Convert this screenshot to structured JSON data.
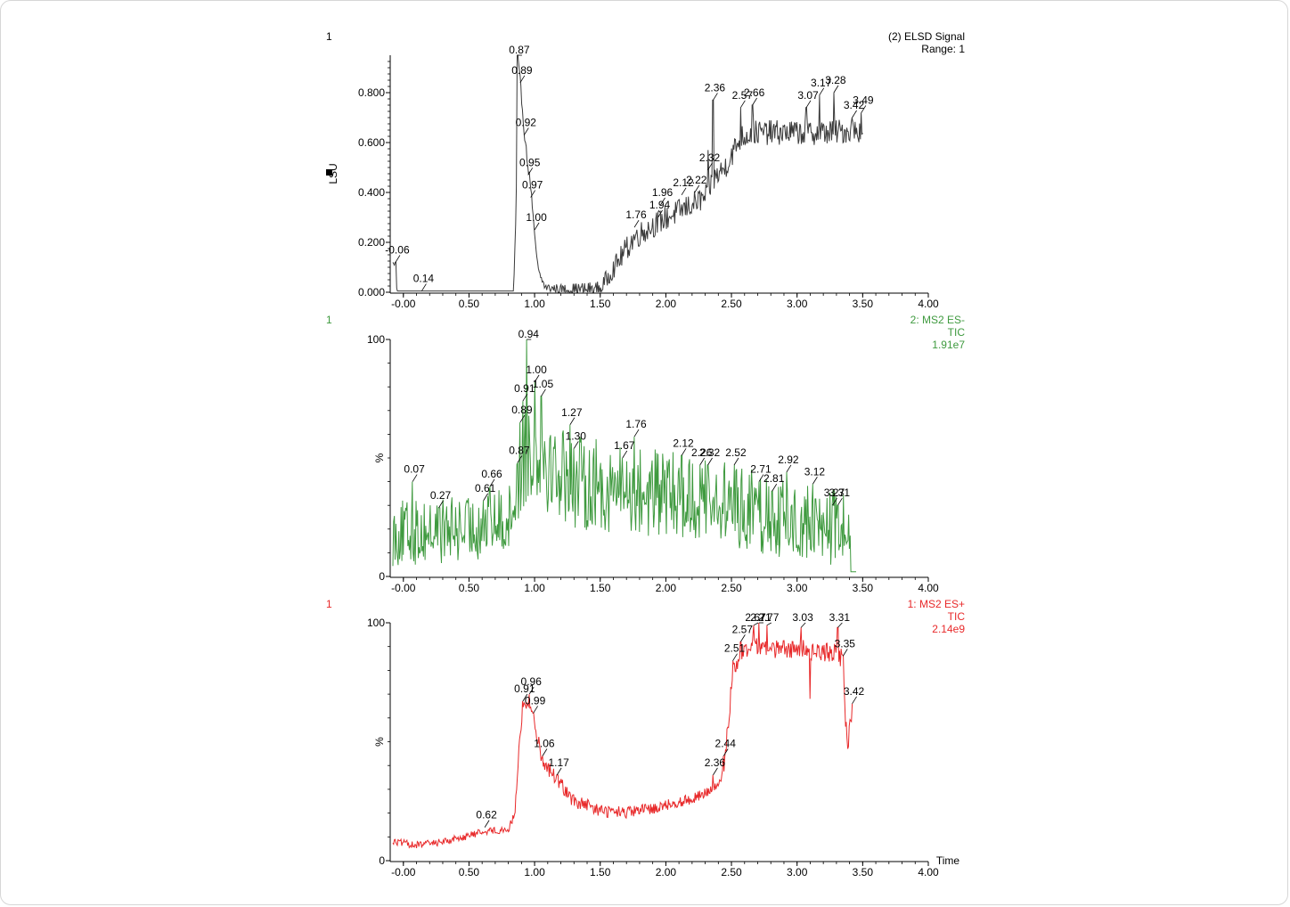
{
  "chart_data": [
    {
      "type": "line",
      "panel_label": "1",
      "title_lines": [
        "(2) ELSD Signal",
        "Range: 1"
      ],
      "ylabel": "LSU",
      "ylim": [
        0,
        0.95
      ],
      "yticks": [
        {
          "value": 0.0,
          "label": "0.000"
        },
        {
          "value": 0.2,
          "label": "0.200"
        },
        {
          "value": 0.4,
          "label": "0.400"
        },
        {
          "value": 0.6,
          "label": "0.600"
        },
        {
          "value": 0.8,
          "label": "0.800"
        }
      ],
      "xlim": [
        -0.08,
        4.0
      ],
      "xticks": [
        {
          "value": 0.0,
          "label": "-0.00"
        },
        {
          "value": 0.5,
          "label": "0.50"
        },
        {
          "value": 1.0,
          "label": "1.00"
        },
        {
          "value": 1.5,
          "label": "1.50"
        },
        {
          "value": 2.0,
          "label": "2.00"
        },
        {
          "value": 2.5,
          "label": "2.50"
        },
        {
          "value": 3.0,
          "label": "3.00"
        },
        {
          "value": 3.5,
          "label": "3.50"
        },
        {
          "value": 4.0,
          "label": "4.00"
        }
      ],
      "color": "#3a3a3a",
      "x_end": 3.5,
      "shape": [
        [
          -0.08,
          0.12
        ],
        [
          -0.06,
          0.1
        ],
        [
          -0.05,
          0.005
        ],
        [
          0.14,
          0.005
        ],
        [
          0.84,
          0.005
        ],
        [
          0.86,
          0.35
        ],
        [
          0.87,
          0.95
        ],
        [
          0.89,
          0.85
        ],
        [
          0.92,
          0.65
        ],
        [
          0.95,
          0.5
        ],
        [
          0.97,
          0.43
        ],
        [
          1.0,
          0.22
        ],
        [
          1.03,
          0.08
        ],
        [
          1.08,
          0.02
        ],
        [
          1.2,
          0.01
        ],
        [
          1.5,
          0.01
        ],
        [
          1.58,
          0.08
        ],
        [
          1.76,
          0.22
        ],
        [
          1.94,
          0.28
        ],
        [
          2.12,
          0.33
        ],
        [
          2.3,
          0.38
        ],
        [
          2.36,
          0.45
        ],
        [
          2.45,
          0.5
        ],
        [
          2.57,
          0.62
        ],
        [
          2.66,
          0.64
        ],
        [
          3.0,
          0.64
        ],
        [
          3.2,
          0.64
        ],
        [
          3.5,
          0.65
        ]
      ],
      "noise": [
        [
          -0.08,
          0.0
        ],
        [
          0.84,
          0.0
        ],
        [
          0.9,
          0.02
        ],
        [
          1.02,
          0.015
        ],
        [
          1.6,
          0.04
        ],
        [
          1.7,
          0.05
        ],
        [
          3.5,
          0.05
        ]
      ],
      "spikes": [
        [
          -0.06,
          0.12
        ],
        [
          0.87,
          0.95
        ],
        [
          2.36,
          0.77
        ],
        [
          2.32,
          0.57
        ],
        [
          2.57,
          0.74
        ],
        [
          2.66,
          0.75
        ],
        [
          3.07,
          0.74
        ],
        [
          3.17,
          0.79
        ],
        [
          3.28,
          0.8
        ],
        [
          3.42,
          0.7
        ],
        [
          3.49,
          0.72
        ]
      ],
      "peaks": [
        {
          "x": -0.06,
          "y": 0.12,
          "label": "-0.06"
        },
        {
          "x": 0.14,
          "y": 0.005,
          "label": "0.14"
        },
        {
          "x": 0.87,
          "y": 0.95,
          "label": "0.87"
        },
        {
          "x": 0.89,
          "y": 0.84,
          "label": "0.89"
        },
        {
          "x": 0.92,
          "y": 0.63,
          "label": "0.92"
        },
        {
          "x": 0.95,
          "y": 0.47,
          "label": "0.95"
        },
        {
          "x": 0.97,
          "y": 0.38,
          "label": "0.97"
        },
        {
          "x": 1.0,
          "y": 0.25,
          "label": "1.00"
        },
        {
          "x": 1.76,
          "y": 0.26,
          "label": "1.76"
        },
        {
          "x": 1.94,
          "y": 0.3,
          "label": "1.94"
        },
        {
          "x": 1.96,
          "y": 0.35,
          "label": "1.96"
        },
        {
          "x": 2.12,
          "y": 0.39,
          "label": "2.12"
        },
        {
          "x": 2.22,
          "y": 0.4,
          "label": "2.22"
        },
        {
          "x": 2.32,
          "y": 0.49,
          "label": "2.32"
        },
        {
          "x": 2.36,
          "y": 0.77,
          "label": "2.36"
        },
        {
          "x": 2.57,
          "y": 0.74,
          "label": "2.57"
        },
        {
          "x": 2.66,
          "y": 0.75,
          "label": "2.66"
        },
        {
          "x": 3.07,
          "y": 0.74,
          "label": "3.07"
        },
        {
          "x": 3.17,
          "y": 0.79,
          "label": "3.17"
        },
        {
          "x": 3.28,
          "y": 0.8,
          "label": "3.28"
        },
        {
          "x": 3.42,
          "y": 0.7,
          "label": "3.42"
        },
        {
          "x": 3.49,
          "y": 0.72,
          "label": "3.49"
        }
      ]
    },
    {
      "type": "line",
      "panel_label": "1",
      "title_lines": [
        "2: MS2 ES-",
        "TIC",
        "1.91e7"
      ],
      "ylabel": "%",
      "ylim": [
        0,
        100
      ],
      "yticks": [
        {
          "value": 0,
          "label": "0"
        },
        {
          "value": 100,
          "label": "100"
        }
      ],
      "xlim": [
        -0.08,
        4.0
      ],
      "xticks": [
        {
          "value": 0.0,
          "label": "-0.00"
        },
        {
          "value": 0.5,
          "label": "0.50"
        },
        {
          "value": 1.0,
          "label": "1.00"
        },
        {
          "value": 1.5,
          "label": "1.50"
        },
        {
          "value": 2.0,
          "label": "2.00"
        },
        {
          "value": 2.5,
          "label": "2.50"
        },
        {
          "value": 3.0,
          "label": "3.00"
        },
        {
          "value": 3.5,
          "label": "3.50"
        },
        {
          "value": 4.0,
          "label": "4.00"
        }
      ],
      "color": "#3f9a3f",
      "x_end": 3.45,
      "shape": [
        [
          -0.08,
          18
        ],
        [
          0.5,
          20
        ],
        [
          0.8,
          24
        ],
        [
          0.87,
          36
        ],
        [
          0.94,
          55
        ],
        [
          1.05,
          50
        ],
        [
          1.3,
          40
        ],
        [
          1.7,
          36
        ],
        [
          2.1,
          34
        ],
        [
          2.5,
          30
        ],
        [
          2.9,
          24
        ],
        [
          3.3,
          20
        ],
        [
          3.4,
          20
        ],
        [
          3.41,
          2
        ],
        [
          3.45,
          2
        ]
      ],
      "noise": [
        [
          -0.08,
          14
        ],
        [
          0.85,
          14
        ],
        [
          0.9,
          22
        ],
        [
          1.3,
          20
        ],
        [
          3.4,
          16
        ],
        [
          3.41,
          0
        ],
        [
          3.45,
          0
        ]
      ],
      "spikes": [
        [
          0.07,
          40
        ],
        [
          0.27,
          29
        ],
        [
          0.61,
          32
        ],
        [
          0.66,
          38
        ],
        [
          0.87,
          48
        ],
        [
          0.89,
          65
        ],
        [
          0.91,
          74
        ],
        [
          0.94,
          100
        ],
        [
          1.0,
          82
        ],
        [
          1.05,
          76
        ],
        [
          1.27,
          64
        ],
        [
          1.3,
          54
        ],
        [
          1.67,
          50
        ],
        [
          1.76,
          59
        ],
        [
          2.12,
          51
        ],
        [
          2.26,
          47
        ],
        [
          2.32,
          47
        ],
        [
          2.52,
          47
        ],
        [
          2.71,
          40
        ],
        [
          2.81,
          36
        ],
        [
          2.92,
          44
        ],
        [
          3.12,
          39
        ],
        [
          3.27,
          30
        ],
        [
          3.31,
          30
        ]
      ],
      "peaks": [
        {
          "x": 0.07,
          "y": 40,
          "label": "0.07"
        },
        {
          "x": 0.27,
          "y": 29,
          "label": "0.27"
        },
        {
          "x": 0.61,
          "y": 32,
          "label": "0.61"
        },
        {
          "x": 0.66,
          "y": 38,
          "label": "0.66"
        },
        {
          "x": 0.87,
          "y": 48,
          "label": "0.87"
        },
        {
          "x": 0.89,
          "y": 65,
          "label": "0.89"
        },
        {
          "x": 0.91,
          "y": 74,
          "label": "0.91"
        },
        {
          "x": 0.94,
          "y": 100,
          "label": "0.94"
        },
        {
          "x": 1.0,
          "y": 82,
          "label": "1.00"
        },
        {
          "x": 1.05,
          "y": 76,
          "label": "1.05"
        },
        {
          "x": 1.27,
          "y": 64,
          "label": "1.27"
        },
        {
          "x": 1.3,
          "y": 54,
          "label": "1.30"
        },
        {
          "x": 1.67,
          "y": 50,
          "label": "1.67"
        },
        {
          "x": 1.76,
          "y": 59,
          "label": "1.76"
        },
        {
          "x": 2.12,
          "y": 51,
          "label": "2.12"
        },
        {
          "x": 2.26,
          "y": 47,
          "label": "2.26"
        },
        {
          "x": 2.32,
          "y": 47,
          "label": "2.32"
        },
        {
          "x": 2.52,
          "y": 47,
          "label": "2.52"
        },
        {
          "x": 2.71,
          "y": 40,
          "label": "2.71"
        },
        {
          "x": 2.81,
          "y": 36,
          "label": "2.81"
        },
        {
          "x": 2.92,
          "y": 44,
          "label": "2.92"
        },
        {
          "x": 3.12,
          "y": 39,
          "label": "3.12"
        },
        {
          "x": 3.27,
          "y": 30,
          "label": "3.27"
        },
        {
          "x": 3.31,
          "y": 30,
          "label": "3.31"
        }
      ]
    },
    {
      "type": "line",
      "panel_label": "1",
      "title_lines": [
        "1: MS2 ES+",
        "TIC",
        "2.14e9"
      ],
      "ylabel": "%",
      "ylim": [
        0,
        100
      ],
      "yticks": [
        {
          "value": 0,
          "label": "0"
        },
        {
          "value": 100,
          "label": "100"
        }
      ],
      "xlim": [
        -0.08,
        4.0
      ],
      "xticks": [
        {
          "value": 0.0,
          "label": "-0.00"
        },
        {
          "value": 0.5,
          "label": "0.50"
        },
        {
          "value": 1.0,
          "label": "1.00"
        },
        {
          "value": 1.5,
          "label": "1.50"
        },
        {
          "value": 2.0,
          "label": "2.00"
        },
        {
          "value": 2.5,
          "label": "2.50"
        },
        {
          "value": 3.0,
          "label": "3.00"
        },
        {
          "value": 3.5,
          "label": "3.50"
        },
        {
          "value": 4.0,
          "label": "4.00"
        }
      ],
      "xlabel": "Time",
      "color": "#e8292a",
      "x_end": 3.42,
      "shape": [
        [
          -0.08,
          8
        ],
        [
          0.1,
          6.5
        ],
        [
          0.3,
          8
        ],
        [
          0.5,
          10.5
        ],
        [
          0.62,
          12.5
        ],
        [
          0.8,
          13
        ],
        [
          0.85,
          20
        ],
        [
          0.88,
          46
        ],
        [
          0.91,
          65
        ],
        [
          0.96,
          66
        ],
        [
          0.99,
          60
        ],
        [
          1.06,
          42
        ],
        [
          1.17,
          34
        ],
        [
          1.3,
          25
        ],
        [
          1.5,
          21
        ],
        [
          1.7,
          20
        ],
        [
          1.9,
          22
        ],
        [
          2.2,
          26
        ],
        [
          2.36,
          30
        ],
        [
          2.42,
          33
        ],
        [
          2.44,
          38
        ],
        [
          2.48,
          60
        ],
        [
          2.51,
          80
        ],
        [
          2.57,
          87
        ],
        [
          2.67,
          91
        ],
        [
          2.71,
          90
        ],
        [
          2.77,
          89
        ],
        [
          3.03,
          89
        ],
        [
          3.31,
          87
        ],
        [
          3.35,
          84
        ],
        [
          3.37,
          58
        ],
        [
          3.39,
          45
        ],
        [
          3.4,
          62
        ],
        [
          3.42,
          58
        ]
      ],
      "noise": [
        [
          -0.08,
          1.5
        ],
        [
          0.85,
          1.5
        ],
        [
          0.9,
          3
        ],
        [
          1.2,
          3
        ],
        [
          2.4,
          2
        ],
        [
          2.5,
          4
        ],
        [
          3.34,
          4
        ],
        [
          3.42,
          3
        ]
      ],
      "spikes": [
        [
          0.91,
          67
        ],
        [
          0.96,
          70
        ],
        [
          0.99,
          62
        ],
        [
          1.06,
          44
        ],
        [
          1.17,
          36
        ],
        [
          2.36,
          36
        ],
        [
          2.44,
          44
        ],
        [
          2.51,
          84
        ],
        [
          2.57,
          92
        ],
        [
          2.67,
          99
        ],
        [
          2.71,
          100
        ],
        [
          2.77,
          99
        ],
        [
          3.03,
          98
        ],
        [
          3.31,
          98
        ],
        [
          3.35,
          86
        ],
        [
          3.42,
          66
        ],
        [
          3.1,
          68
        ]
      ],
      "peaks": [
        {
          "x": 0.62,
          "y": 14,
          "label": "0.62"
        },
        {
          "x": 0.91,
          "y": 67,
          "label": "0.91"
        },
        {
          "x": 0.96,
          "y": 70,
          "label": "0.96"
        },
        {
          "x": 0.99,
          "y": 62,
          "label": "0.99"
        },
        {
          "x": 1.06,
          "y": 44,
          "label": "1.06"
        },
        {
          "x": 1.17,
          "y": 36,
          "label": "1.17"
        },
        {
          "x": 2.36,
          "y": 36,
          "label": "2.36"
        },
        {
          "x": 2.44,
          "y": 44,
          "label": "2.44"
        },
        {
          "x": 2.51,
          "y": 84,
          "label": "2.51"
        },
        {
          "x": 2.57,
          "y": 92,
          "label": "2.57"
        },
        {
          "x": 2.67,
          "y": 99,
          "label": "2.67"
        },
        {
          "x": 2.71,
          "y": 100,
          "label": "2.71"
        },
        {
          "x": 2.77,
          "y": 99,
          "label": "2.77"
        },
        {
          "x": 3.03,
          "y": 98,
          "label": "3.03"
        },
        {
          "x": 3.31,
          "y": 98,
          "label": "3.31"
        },
        {
          "x": 3.35,
          "y": 86,
          "label": "3.35"
        },
        {
          "x": 3.42,
          "y": 66,
          "label": "3.42"
        }
      ]
    }
  ]
}
